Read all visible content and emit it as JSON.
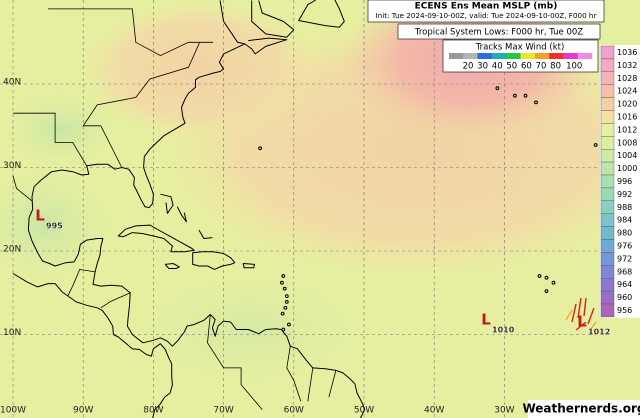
{
  "header": {
    "title": "ECENS Ens Mean MSLP (mb)",
    "subtitle": "Init: Tue 2024-09-10-00Z, valid: Tue 2024-09-10-00Z, F000 hr",
    "lows_line": "Tropical System Lows: F000 hr, Tue 00Z"
  },
  "wind_legend": {
    "title": "Tracks Max Wind (kt)",
    "labels": [
      "20",
      "30",
      "40",
      "50",
      "60",
      "70",
      "80",
      "100"
    ],
    "colors": [
      "#9a9a9a",
      "#b4b4b4",
      "#2a6fd6",
      "#1fb0b0",
      "#2cc44a",
      "#e8e82a",
      "#f2a22a",
      "#e8332a",
      "#e23ad4",
      "#f08ae8"
    ]
  },
  "colorbar": {
    "labels": [
      1036,
      1032,
      1028,
      1024,
      1020,
      1016,
      1012,
      1008,
      1004,
      1000,
      996,
      992,
      988,
      984,
      980,
      976,
      972,
      968,
      964,
      960,
      956
    ],
    "colors": [
      "#f49fd0",
      "#f5a9c4",
      "#f5b3b5",
      "#f4c0a9",
      "#f4d0a3",
      "#f3e0a5",
      "#eaeea0",
      "#dcefa0",
      "#cdeba3",
      "#bde6a8",
      "#abe0ae",
      "#9ad9b5",
      "#8ad0be",
      "#7cc5c7",
      "#72b8cf",
      "#6fa9d5",
      "#7398d8",
      "#7d87d6",
      "#8b78d0",
      "#9a6cc6",
      "#a865bb"
    ]
  },
  "axes": {
    "lat_labels": [
      "40N",
      "30N",
      "20N",
      "10N"
    ],
    "lon_labels": [
      "100W",
      "90W",
      "80W",
      "70W",
      "60W",
      "50W",
      "40W",
      "30W"
    ]
  },
  "lows": [
    {
      "symbol": "L",
      "pressure": "995"
    },
    {
      "symbol": "L",
      "pressure": "1010"
    },
    {
      "symbol": "L",
      "pressure": "1012"
    }
  ],
  "credit": "Weathernerds.org"
}
